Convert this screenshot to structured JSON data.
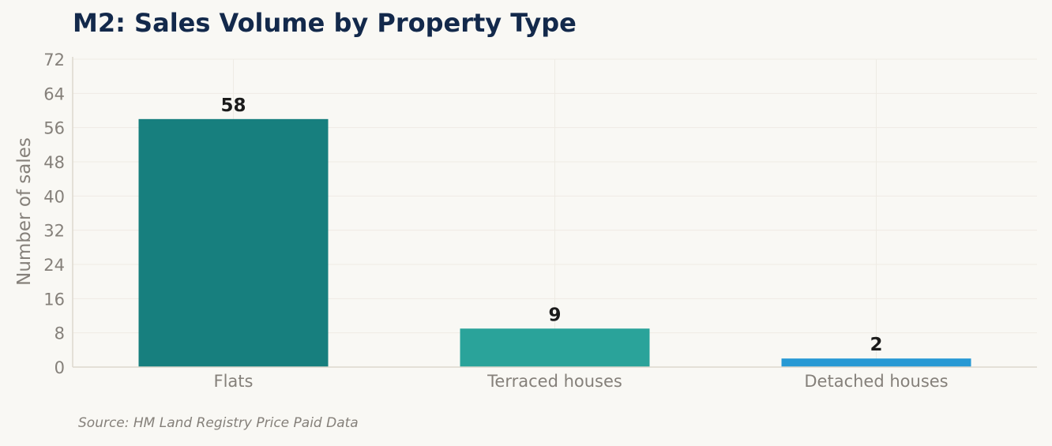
{
  "title": "M2: Sales Volume by Property Type",
  "source": "Source: HM Land Registry Price Paid Data",
  "chart_data": {
    "type": "bar",
    "title": "M2: Sales Volume by Property Type",
    "categories": [
      "Flats",
      "Terraced houses",
      "Detached houses"
    ],
    "values": [
      58,
      9,
      2
    ],
    "data_labels": [
      "58",
      "9",
      "2"
    ],
    "colors": [
      "#177f7e",
      "#2aa39a",
      "#2799d4"
    ],
    "xlabel": "",
    "ylabel": "Number of sales",
    "ylim": [
      0,
      72
    ],
    "yticks": [
      0,
      8,
      16,
      24,
      32,
      40,
      48,
      56,
      64,
      72
    ],
    "grid": true,
    "legend": "none"
  }
}
